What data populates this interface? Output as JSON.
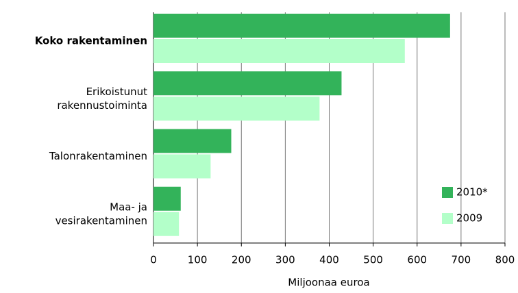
{
  "chart_data": {
    "type": "bar",
    "orientation": "horizontal",
    "categories": [
      [
        "Koko rakentaminen"
      ],
      [
        "Erikoistunut",
        "rakennustoiminta"
      ],
      [
        "Talonrakentaminen"
      ],
      [
        "Maa- ja",
        "vesirakentaminen"
      ]
    ],
    "series": [
      {
        "name": "2010*",
        "color": "#33b35a",
        "values": [
          675,
          428,
          177,
          62
        ]
      },
      {
        "name": "2009",
        "color": "#b3ffc9",
        "values": [
          572,
          378,
          130,
          58
        ]
      }
    ],
    "xlim": [
      0,
      800
    ],
    "xticks": [
      0,
      100,
      200,
      300,
      400,
      500,
      600,
      700,
      800
    ],
    "xlabel": "Miljoonaa euroa",
    "grid": true,
    "legend": "lower right"
  }
}
